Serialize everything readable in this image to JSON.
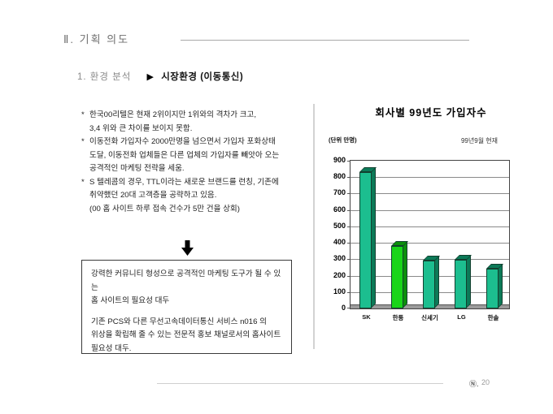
{
  "slide": {
    "title": "Ⅱ. 기획 의도",
    "section_prefix": "1.  환경 분석",
    "section_pointer": "▶",
    "section_title": "시장환경 (이동통신)",
    "footer_logo": "Ⓝ.",
    "page_number": "20"
  },
  "analysis": {
    "bullets": [
      {
        "marker": "*",
        "text": "한국00리텔은 현재 2위이지만 1위와의 격차가 크고,\n3,4 위와 큰 차이를 보이지 못함."
      },
      {
        "marker": "*",
        "text": "이동전화 가입자수 2000만명을 넘으면서 가입자 포화상태\n도달, 이동전화 업체들은 다른 업체의 가입자를 빼앗아 오는\n공격적인 마케팅 전략을 세움."
      },
      {
        "marker": "*",
        "text": "S 텔레콤의 경우, TTL이라는 새로운 브랜드를 런칭, 기존에\n취약했던 20대 고객층을 공략하고 있음.\n(00 홈 사이트 하루 접속 건수가 5만 건을 상회)"
      }
    ],
    "conclusion_paragraphs": [
      "강력한 커뮤니티 형성으로 공격적인 마케팅 도구가 될 수 있는\n홈 사이트의 필요성 대두",
      "기존 PCS와 다른 무선고속데이터통신 서비스 n016 의\n위상을 확립해 줄 수 있는 전문적 홍보 채널로서의 홈사이트\n필요성 대두."
    ]
  },
  "chart_data": {
    "type": "bar",
    "title": "회사별 99년도 가입자수",
    "unit_label": "(단위 만명)",
    "as_of_label": "99년9월 현재",
    "categories": [
      "SK",
      "한통",
      "신세기",
      "LG",
      "한솔"
    ],
    "values": [
      830,
      380,
      290,
      295,
      240
    ],
    "ylim": [
      0,
      900
    ],
    "ytick_step": 100,
    "grid": true,
    "legend_position": "none",
    "bar_front_colors": [
      "#1CBE8F",
      "#19D519",
      "#1CBE8F",
      "#1CBE8F",
      "#1CBE8F"
    ],
    "bar_side_colors": [
      "#0C7A58",
      "#0C8F0C",
      "#0C7A58",
      "#0C7A58",
      "#0C7A58"
    ],
    "bar_outline_color": "#12402F"
  }
}
